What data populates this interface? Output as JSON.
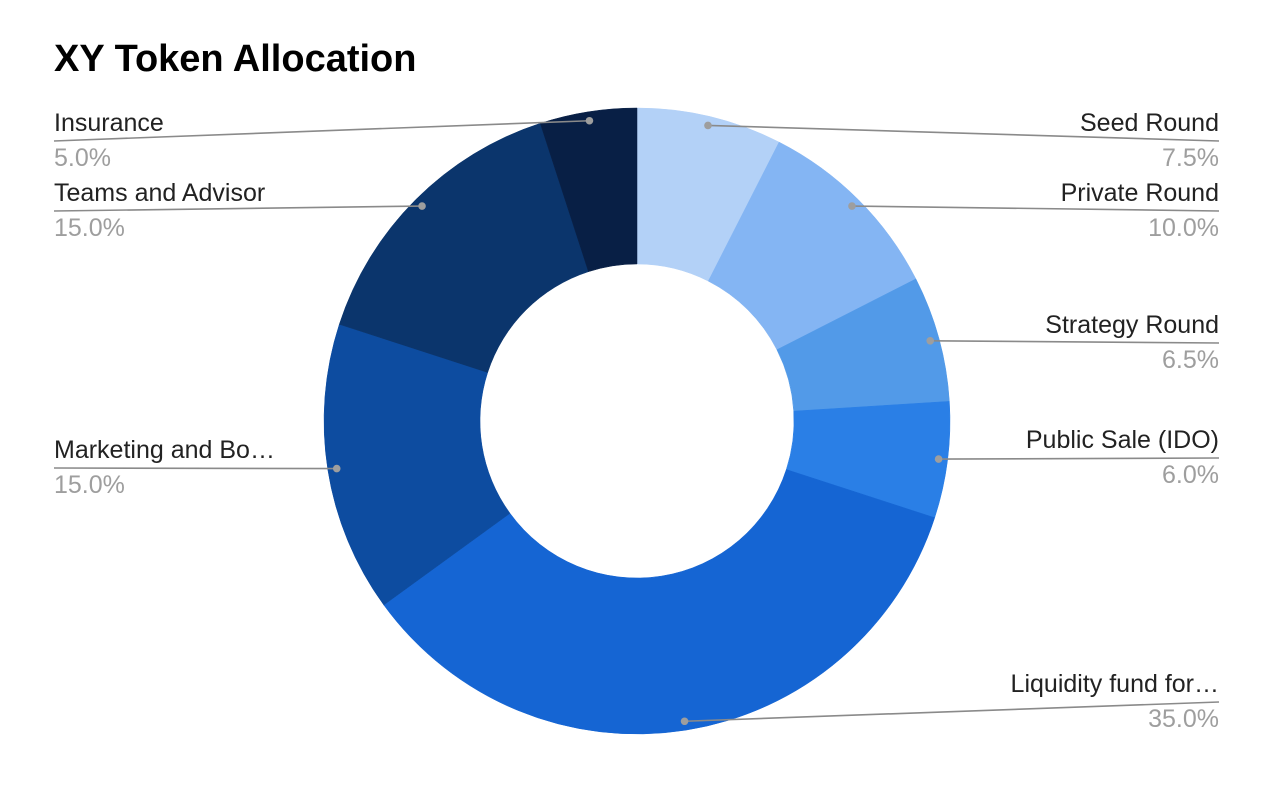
{
  "chart_data": {
    "type": "pie",
    "variant": "donut",
    "title": "XY Token Allocation",
    "legend": "labels beside slices with leader lines",
    "slices": [
      {
        "label": "Seed Round",
        "value": 7.5,
        "value_label": "7.5%",
        "color": "#b3d1f7"
      },
      {
        "label": "Private Round",
        "value": 10.0,
        "value_label": "10.0%",
        "color": "#84b5f3"
      },
      {
        "label": "Strategy Round",
        "value": 6.5,
        "value_label": "6.5%",
        "color": "#529ae8"
      },
      {
        "label": "Public Sale (IDO)",
        "value": 6.0,
        "value_label": "6.0%",
        "color": "#2a7fe6"
      },
      {
        "label": "Liquidity fund for…",
        "value": 35.0,
        "value_label": "35.0%",
        "color": "#1565d3"
      },
      {
        "label": "Marketing and Bo…",
        "value": 15.0,
        "value_label": "15.0%",
        "color": "#0d4ca0"
      },
      {
        "label": "Teams and Advisor",
        "value": 15.0,
        "value_label": "15.0%",
        "color": "#0b356c"
      },
      {
        "label": "Insurance",
        "value": 5.0,
        "value_label": "5.0%",
        "color": "#081f45"
      }
    ]
  }
}
